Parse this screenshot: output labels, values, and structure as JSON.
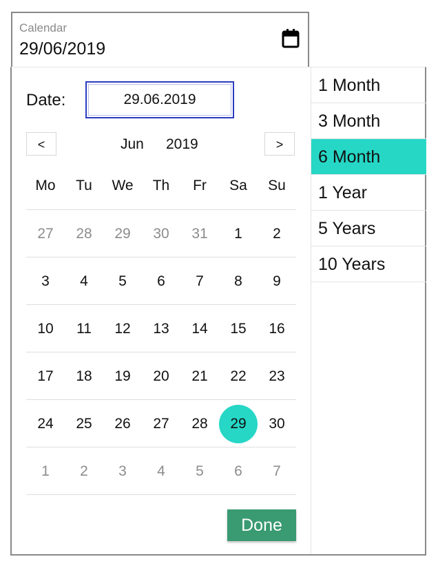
{
  "field": {
    "label": "Calendar",
    "value": "29/06/2019",
    "icon": "calendar-icon"
  },
  "picker": {
    "date_label": "Date:",
    "date_input_value": "29.06.2019",
    "prev_label": "<",
    "next_label": ">",
    "month": "Jun",
    "year": "2019",
    "weekdays": [
      "Mo",
      "Tu",
      "We",
      "Th",
      "Fr",
      "Sa",
      "Su"
    ],
    "weeks": [
      [
        {
          "d": "27",
          "m": true
        },
        {
          "d": "28",
          "m": true
        },
        {
          "d": "29",
          "m": true
        },
        {
          "d": "30",
          "m": true
        },
        {
          "d": "31",
          "m": true
        },
        {
          "d": "1"
        },
        {
          "d": "2"
        }
      ],
      [
        {
          "d": "3"
        },
        {
          "d": "4"
        },
        {
          "d": "5"
        },
        {
          "d": "6"
        },
        {
          "d": "7"
        },
        {
          "d": "8"
        },
        {
          "d": "9"
        }
      ],
      [
        {
          "d": "10"
        },
        {
          "d": "11"
        },
        {
          "d": "12"
        },
        {
          "d": "13"
        },
        {
          "d": "14"
        },
        {
          "d": "15"
        },
        {
          "d": "16"
        }
      ],
      [
        {
          "d": "17"
        },
        {
          "d": "18"
        },
        {
          "d": "19"
        },
        {
          "d": "20"
        },
        {
          "d": "21"
        },
        {
          "d": "22"
        },
        {
          "d": "23"
        }
      ],
      [
        {
          "d": "24"
        },
        {
          "d": "25"
        },
        {
          "d": "26"
        },
        {
          "d": "27"
        },
        {
          "d": "28"
        },
        {
          "d": "29",
          "sel": true
        },
        {
          "d": "30"
        }
      ],
      [
        {
          "d": "1",
          "m": true
        },
        {
          "d": "2",
          "m": true
        },
        {
          "d": "3",
          "m": true
        },
        {
          "d": "4",
          "m": true
        },
        {
          "d": "5",
          "m": true
        },
        {
          "d": "6",
          "m": true
        },
        {
          "d": "7",
          "m": true
        }
      ]
    ],
    "done_label": "Done"
  },
  "periods": [
    {
      "label": "1 Month"
    },
    {
      "label": "3 Month"
    },
    {
      "label": "6 Month",
      "active": true
    },
    {
      "label": "1 Year"
    },
    {
      "label": "5 Years"
    },
    {
      "label": "10 Years"
    }
  ],
  "colors": {
    "accent": "#26d7c6",
    "done": "#3a9a72",
    "input_border": "#2b3bbf"
  }
}
